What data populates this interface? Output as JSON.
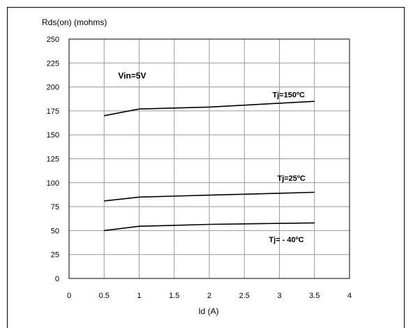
{
  "chart_data": {
    "type": "line",
    "ylabel": "Rds(on) (mohms)",
    "xlabel": "Id (A)",
    "xlim": [
      0,
      4
    ],
    "ylim": [
      0,
      250
    ],
    "x_ticks": [
      "0",
      "0.5",
      "1",
      "1.5",
      "2",
      "2.5",
      "3",
      "3.5",
      "4"
    ],
    "y_ticks": [
      "0",
      "25",
      "50",
      "75",
      "100",
      "125",
      "150",
      "175",
      "200",
      "225",
      "250"
    ],
    "grid": true,
    "annotations": [
      {
        "text": "Vin=5V",
        "x": 0.7,
        "y": 209
      },
      {
        "text": "Tj=150ºC",
        "x": 2.9,
        "y": 189
      },
      {
        "text": "Tj=25ºC",
        "x": 2.97,
        "y": 102
      },
      {
        "text": "Tj= - 40ºC",
        "x": 2.85,
        "y": 38
      }
    ],
    "series": [
      {
        "x": [
          0.5,
          1,
          1.5,
          2,
          2.5,
          3,
          3.5
        ],
        "values": [
          170,
          177,
          178,
          179,
          181,
          183,
          185
        ]
      },
      {
        "x": [
          0.5,
          1,
          1.5,
          2,
          2.5,
          3,
          3.5
        ],
        "values": [
          81,
          85,
          86,
          87,
          88,
          89,
          90
        ]
      },
      {
        "x": [
          0.5,
          1,
          1.5,
          2,
          2.5,
          3,
          3.5
        ],
        "values": [
          50,
          54.5,
          55.5,
          56.5,
          57,
          57.5,
          58
        ]
      }
    ]
  }
}
